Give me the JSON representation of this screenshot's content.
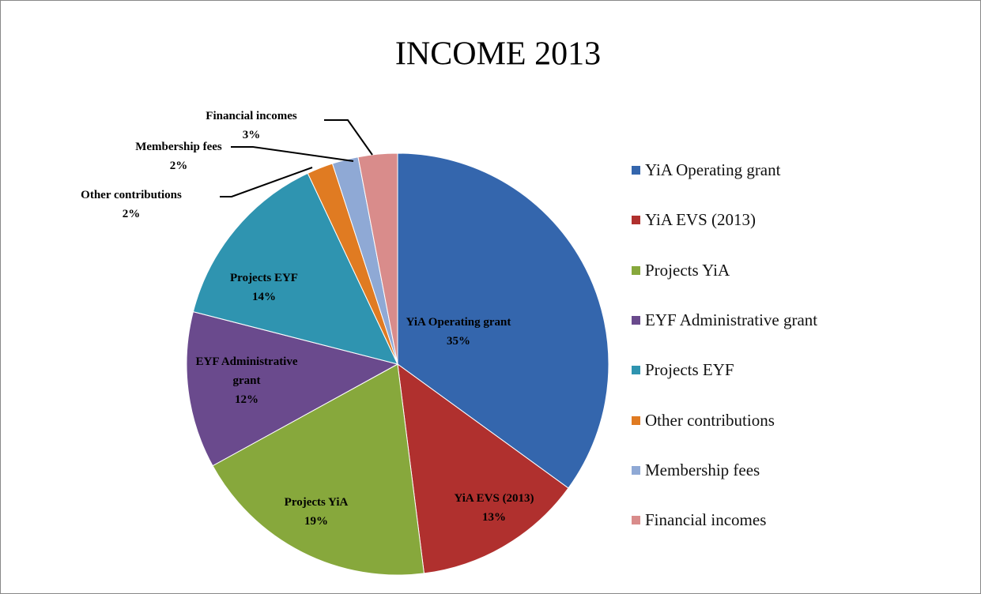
{
  "chart_data": {
    "type": "pie",
    "title": "INCOME 2013",
    "categories": [
      "YiA Operating grant",
      "YiA EVS (2013)",
      "Projects YiA",
      "EYF Administrative grant",
      "Projects EYF",
      "Other contributions",
      "Membership fees",
      "Financial incomes"
    ],
    "values": [
      35,
      13,
      19,
      12,
      14,
      2,
      2,
      3
    ],
    "value_labels": [
      "35%",
      "13%",
      "19%",
      "12%",
      "14%",
      "2%",
      "2%",
      "3%"
    ],
    "colors": [
      "#3466ad",
      "#b0302e",
      "#87a83c",
      "#6a4a8d",
      "#2f94b0",
      "#e07b22",
      "#8fa9d5",
      "#d98c8b"
    ],
    "legend": "right"
  }
}
